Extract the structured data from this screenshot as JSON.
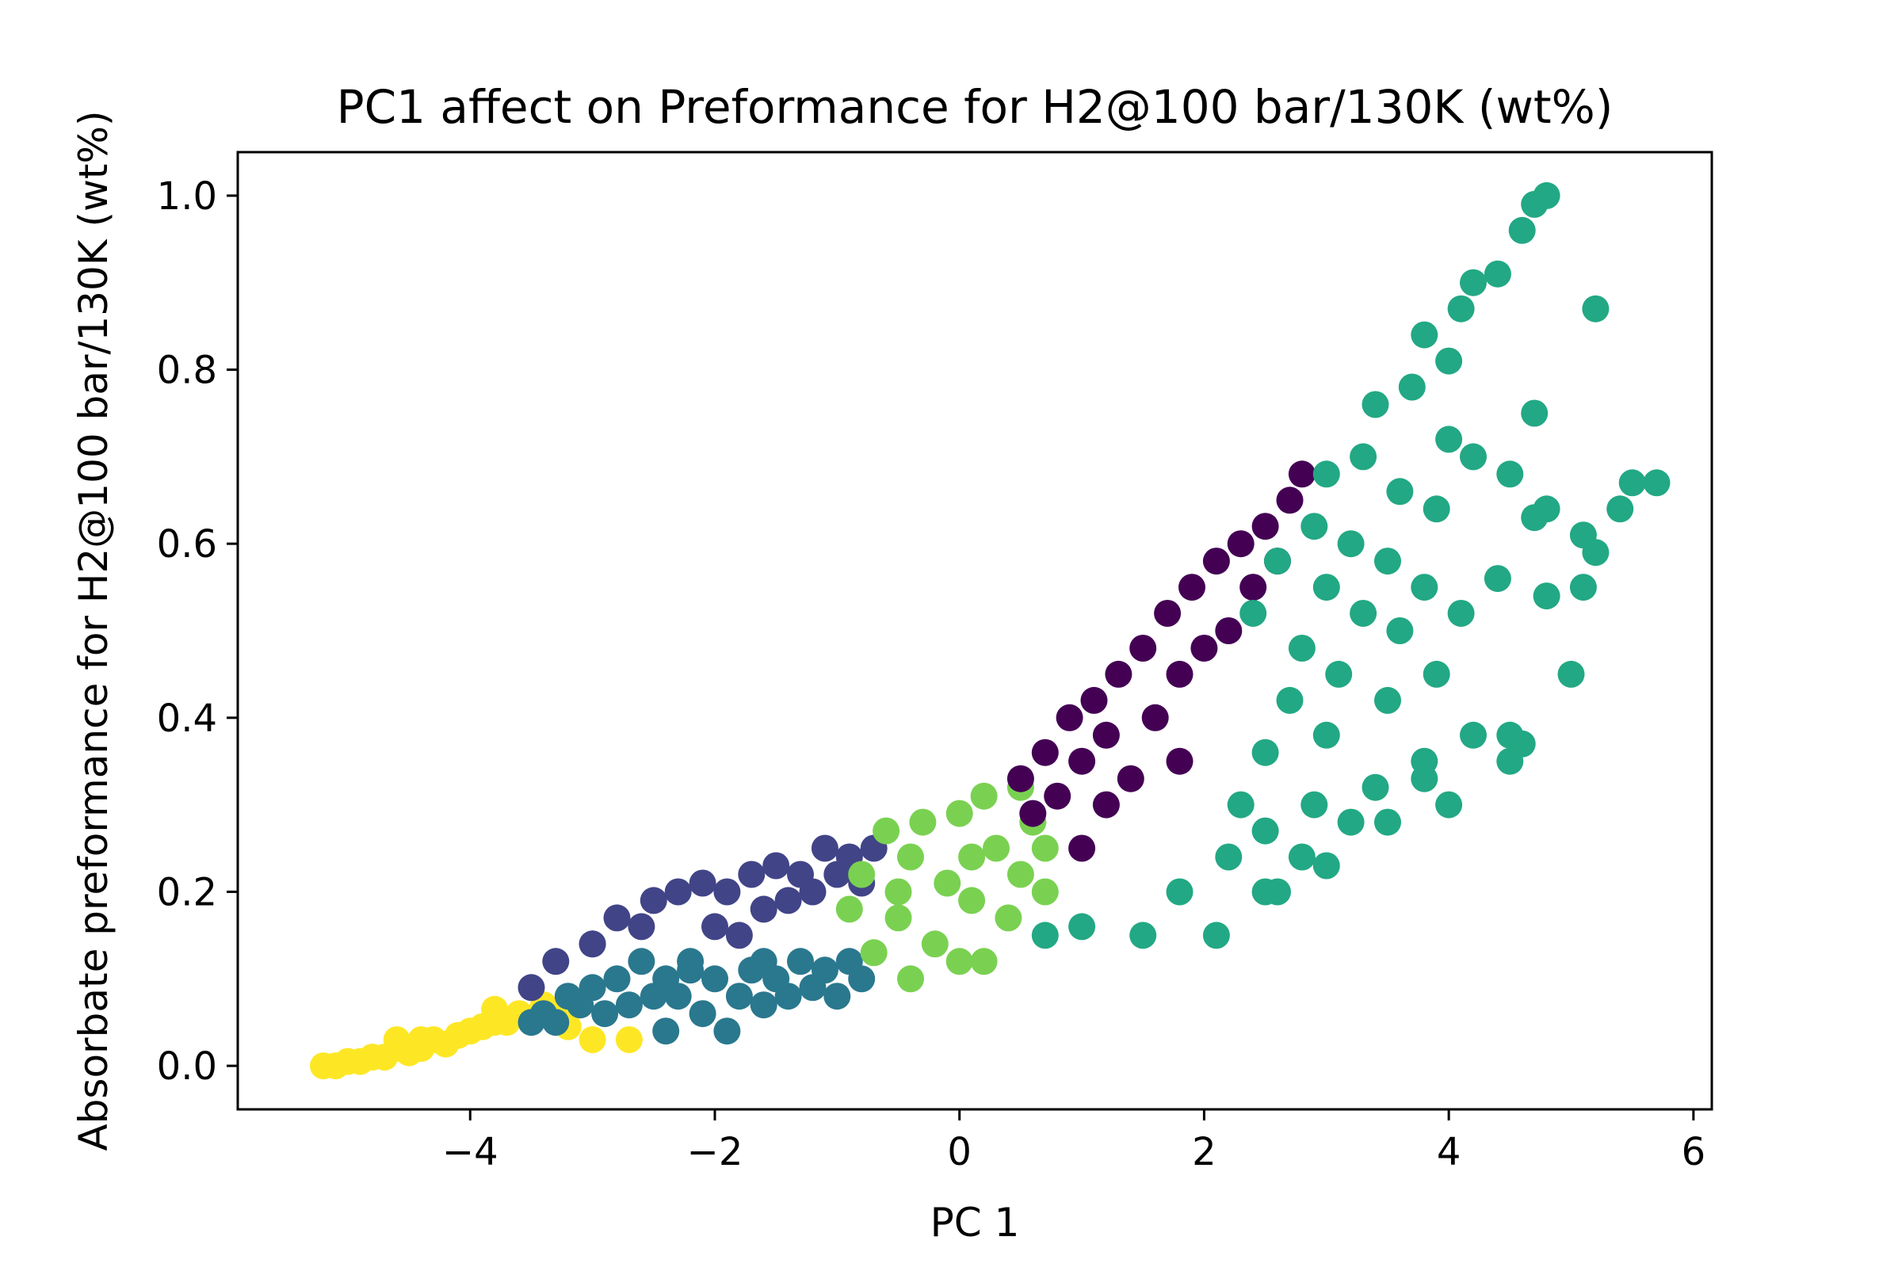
{
  "chart_data": {
    "type": "scatter",
    "title": "PC1 affect on Preformance for H2@100 bar/130K (wt%)",
    "xlabel": "PC 1",
    "ylabel": "Absorbate preformance for H2@100 bar/130K (wt%)",
    "xlim": [
      -5.9,
      6.15
    ],
    "ylim": [
      -0.05,
      1.05
    ],
    "x_ticks": [
      {
        "value": -4,
        "label": "−4"
      },
      {
        "value": -2,
        "label": "−2"
      },
      {
        "value": 0,
        "label": "0"
      },
      {
        "value": 2,
        "label": "2"
      },
      {
        "value": 4,
        "label": "4"
      },
      {
        "value": 6,
        "label": "6"
      }
    ],
    "y_ticks": [
      {
        "value": 0.0,
        "label": "0.0"
      },
      {
        "value": 0.2,
        "label": "0.2"
      },
      {
        "value": 0.4,
        "label": "0.4"
      },
      {
        "value": 0.6,
        "label": "0.6"
      },
      {
        "value": 0.8,
        "label": "0.8"
      },
      {
        "value": 1.0,
        "label": "1.0"
      }
    ],
    "grid": false,
    "legend": "none",
    "series": [
      {
        "color": "#fde725",
        "points": [
          [
            -5.2,
            0.0
          ],
          [
            -5.1,
            0.0
          ],
          [
            -5.0,
            0.005
          ],
          [
            -4.9,
            0.005
          ],
          [
            -4.8,
            0.01
          ],
          [
            -4.7,
            0.01
          ],
          [
            -4.6,
            0.02
          ],
          [
            -4.5,
            0.015
          ],
          [
            -4.4,
            0.02
          ],
          [
            -4.3,
            0.03
          ],
          [
            -4.2,
            0.025
          ],
          [
            -4.1,
            0.035
          ],
          [
            -4.0,
            0.04
          ],
          [
            -3.9,
            0.045
          ],
          [
            -3.8,
            0.05
          ],
          [
            -3.8,
            0.065
          ],
          [
            -3.7,
            0.05
          ],
          [
            -3.6,
            0.06
          ],
          [
            -3.5,
            0.055
          ],
          [
            -3.4,
            0.07
          ],
          [
            -3.3,
            0.06
          ],
          [
            -3.2,
            0.045
          ],
          [
            -3.0,
            0.03
          ],
          [
            -2.7,
            0.03
          ],
          [
            -4.6,
            0.03
          ],
          [
            -4.4,
            0.03
          ]
        ]
      },
      {
        "color": "#2a788e",
        "points": [
          [
            -3.5,
            0.05
          ],
          [
            -3.4,
            0.06
          ],
          [
            -3.3,
            0.05
          ],
          [
            -3.2,
            0.08
          ],
          [
            -3.1,
            0.07
          ],
          [
            -3.0,
            0.09
          ],
          [
            -2.9,
            0.06
          ],
          [
            -2.8,
            0.1
          ],
          [
            -2.7,
            0.07
          ],
          [
            -2.6,
            0.12
          ],
          [
            -2.5,
            0.08
          ],
          [
            -2.4,
            0.1
          ],
          [
            -2.4,
            0.04
          ],
          [
            -2.3,
            0.08
          ],
          [
            -2.2,
            0.11
          ],
          [
            -2.1,
            0.06
          ],
          [
            -2.0,
            0.1
          ],
          [
            -1.9,
            0.04
          ],
          [
            -1.8,
            0.08
          ],
          [
            -1.7,
            0.11
          ],
          [
            -1.6,
            0.07
          ],
          [
            -1.5,
            0.1
          ],
          [
            -1.4,
            0.08
          ],
          [
            -1.3,
            0.12
          ],
          [
            -1.2,
            0.09
          ],
          [
            -1.1,
            0.11
          ],
          [
            -1.0,
            0.08
          ],
          [
            -0.9,
            0.12
          ],
          [
            -0.8,
            0.1
          ],
          [
            -3.0,
            0.14
          ],
          [
            -2.2,
            0.12
          ],
          [
            -1.6,
            0.12
          ]
        ]
      },
      {
        "color": "#414487",
        "points": [
          [
            -3.5,
            0.09
          ],
          [
            -3.3,
            0.12
          ],
          [
            -3.0,
            0.14
          ],
          [
            -2.8,
            0.17
          ],
          [
            -2.6,
            0.16
          ],
          [
            -2.5,
            0.19
          ],
          [
            -2.3,
            0.2
          ],
          [
            -2.1,
            0.21
          ],
          [
            -1.9,
            0.2
          ],
          [
            -1.7,
            0.22
          ],
          [
            -1.6,
            0.18
          ],
          [
            -1.5,
            0.23
          ],
          [
            -1.4,
            0.19
          ],
          [
            -1.3,
            0.22
          ],
          [
            -1.2,
            0.2
          ],
          [
            -1.1,
            0.25
          ],
          [
            -1.0,
            0.22
          ],
          [
            -0.9,
            0.24
          ],
          [
            -0.8,
            0.21
          ],
          [
            -0.7,
            0.25
          ],
          [
            -2.0,
            0.16
          ],
          [
            -1.8,
            0.15
          ]
        ]
      },
      {
        "color": "#7ad151",
        "points": [
          [
            -0.9,
            0.18
          ],
          [
            -0.8,
            0.22
          ],
          [
            -0.7,
            0.13
          ],
          [
            -0.6,
            0.27
          ],
          [
            -0.5,
            0.17
          ],
          [
            -0.4,
            0.24
          ],
          [
            -0.4,
            0.1
          ],
          [
            -0.3,
            0.28
          ],
          [
            -0.2,
            0.14
          ],
          [
            -0.1,
            0.21
          ],
          [
            0.0,
            0.29
          ],
          [
            0.0,
            0.12
          ],
          [
            0.1,
            0.19
          ],
          [
            0.2,
            0.31
          ],
          [
            0.2,
            0.12
          ],
          [
            0.3,
            0.25
          ],
          [
            0.4,
            0.17
          ],
          [
            0.5,
            0.32
          ],
          [
            0.5,
            0.22
          ],
          [
            0.6,
            0.28
          ],
          [
            0.7,
            0.2
          ],
          [
            0.7,
            0.25
          ],
          [
            -0.5,
            0.2
          ],
          [
            0.1,
            0.24
          ]
        ]
      },
      {
        "color": "#440154",
        "points": [
          [
            0.5,
            0.33
          ],
          [
            0.6,
            0.29
          ],
          [
            0.7,
            0.36
          ],
          [
            0.8,
            0.31
          ],
          [
            0.9,
            0.4
          ],
          [
            1.0,
            0.35
          ],
          [
            1.1,
            0.42
          ],
          [
            1.0,
            0.25
          ],
          [
            1.2,
            0.38
          ],
          [
            1.3,
            0.45
          ],
          [
            1.4,
            0.33
          ],
          [
            1.5,
            0.48
          ],
          [
            1.6,
            0.4
          ],
          [
            1.7,
            0.52
          ],
          [
            1.8,
            0.45
          ],
          [
            1.9,
            0.55
          ],
          [
            2.0,
            0.48
          ],
          [
            2.1,
            0.58
          ],
          [
            2.2,
            0.5
          ],
          [
            2.3,
            0.6
          ],
          [
            2.4,
            0.55
          ],
          [
            2.5,
            0.62
          ],
          [
            2.6,
            0.58
          ],
          [
            2.7,
            0.65
          ],
          [
            2.8,
            0.68
          ],
          [
            1.2,
            0.3
          ],
          [
            1.8,
            0.35
          ]
        ]
      },
      {
        "color": "#22a884",
        "points": [
          [
            0.7,
            0.15
          ],
          [
            1.0,
            0.16
          ],
          [
            1.5,
            0.15
          ],
          [
            2.1,
            0.15
          ],
          [
            2.6,
            0.2
          ],
          [
            1.8,
            0.2
          ],
          [
            2.2,
            0.24
          ],
          [
            2.5,
            0.27
          ],
          [
            2.3,
            0.3
          ],
          [
            2.8,
            0.24
          ],
          [
            3.0,
            0.23
          ],
          [
            2.5,
            0.36
          ],
          [
            2.9,
            0.3
          ],
          [
            3.2,
            0.28
          ],
          [
            2.7,
            0.42
          ],
          [
            3.0,
            0.38
          ],
          [
            3.4,
            0.32
          ],
          [
            2.4,
            0.52
          ],
          [
            2.8,
            0.48
          ],
          [
            3.1,
            0.45
          ],
          [
            3.5,
            0.42
          ],
          [
            3.8,
            0.35
          ],
          [
            2.6,
            0.58
          ],
          [
            3.0,
            0.55
          ],
          [
            3.3,
            0.52
          ],
          [
            3.6,
            0.5
          ],
          [
            3.9,
            0.45
          ],
          [
            4.2,
            0.38
          ],
          [
            4.5,
            0.35
          ],
          [
            4.6,
            0.37
          ],
          [
            2.9,
            0.62
          ],
          [
            3.2,
            0.6
          ],
          [
            3.5,
            0.58
          ],
          [
            3.8,
            0.55
          ],
          [
            4.1,
            0.52
          ],
          [
            4.4,
            0.56
          ],
          [
            4.8,
            0.54
          ],
          [
            3.0,
            0.68
          ],
          [
            3.3,
            0.7
          ],
          [
            3.6,
            0.66
          ],
          [
            3.9,
            0.64
          ],
          [
            4.2,
            0.7
          ],
          [
            4.5,
            0.68
          ],
          [
            4.7,
            0.63
          ],
          [
            3.4,
            0.76
          ],
          [
            3.7,
            0.78
          ],
          [
            4.0,
            0.81
          ],
          [
            4.0,
            0.72
          ],
          [
            3.8,
            0.84
          ],
          [
            4.1,
            0.87
          ],
          [
            4.2,
            0.9
          ],
          [
            4.4,
            0.91
          ],
          [
            4.6,
            0.96
          ],
          [
            4.7,
            0.99
          ],
          [
            4.8,
            1.0
          ],
          [
            5.2,
            0.87
          ],
          [
            4.7,
            0.75
          ],
          [
            4.8,
            0.64
          ],
          [
            5.0,
            0.45
          ],
          [
            5.1,
            0.61
          ],
          [
            5.2,
            0.59
          ],
          [
            5.4,
            0.64
          ],
          [
            5.5,
            0.67
          ],
          [
            5.7,
            0.67
          ],
          [
            5.1,
            0.55
          ],
          [
            4.5,
            0.38
          ],
          [
            4.0,
            0.3
          ],
          [
            3.5,
            0.28
          ],
          [
            2.5,
            0.2
          ],
          [
            3.8,
            0.33
          ]
        ]
      }
    ]
  }
}
